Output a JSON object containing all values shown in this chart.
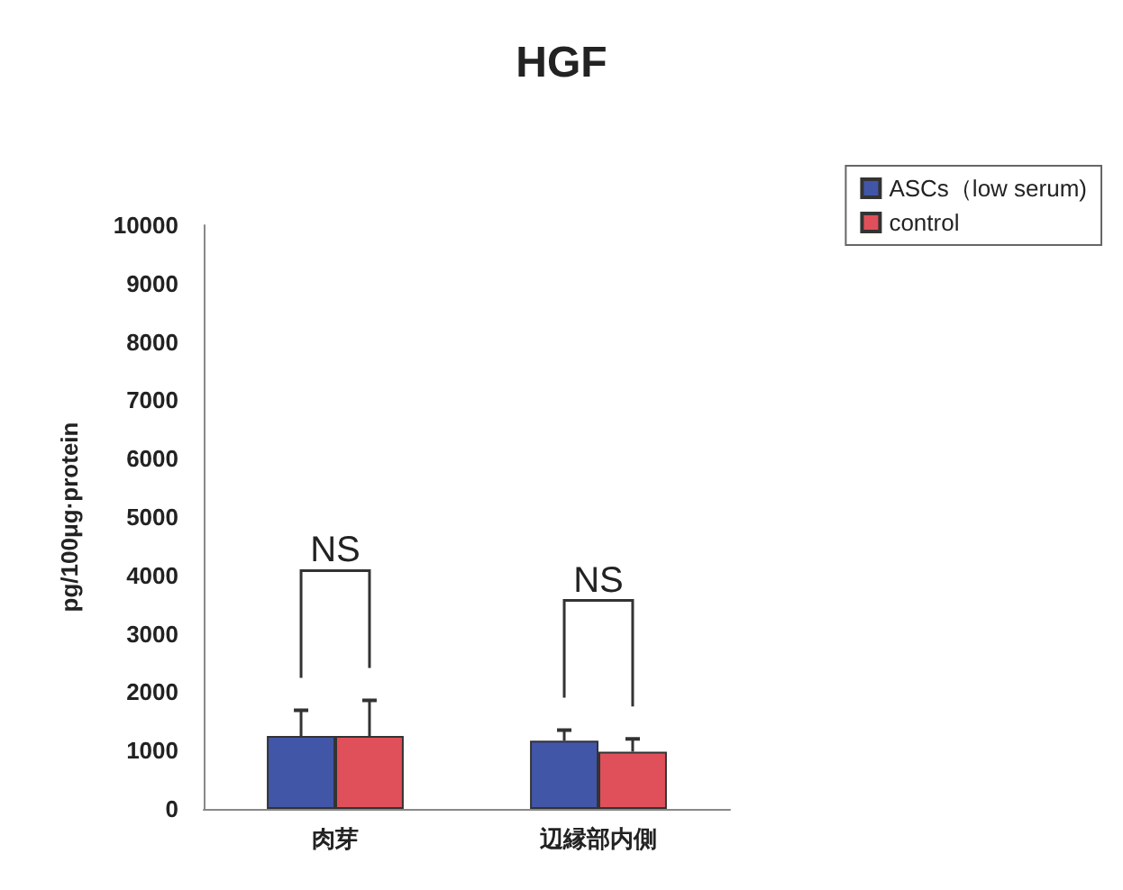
{
  "chart_data": {
    "type": "bar",
    "title": "HGF",
    "ylabel": "pg/100μg·protein",
    "categories": [
      "肉芽",
      "辺縁部内側"
    ],
    "series": [
      {
        "name": "ASCs（low serum)",
        "color": "#4256a8",
        "values": [
          1250,
          1170
        ],
        "errors": [
          440,
          180
        ]
      },
      {
        "name": "control",
        "color": "#e0505a",
        "values": [
          1250,
          980
        ],
        "errors": [
          610,
          220
        ]
      }
    ],
    "ylim": [
      0,
      10000
    ],
    "yticks": [
      0,
      1000,
      2000,
      3000,
      4000,
      5000,
      6000,
      7000,
      8000,
      9000,
      10000
    ],
    "annotations": [
      "NS",
      "NS"
    ],
    "legend": "top right",
    "grid": false
  }
}
